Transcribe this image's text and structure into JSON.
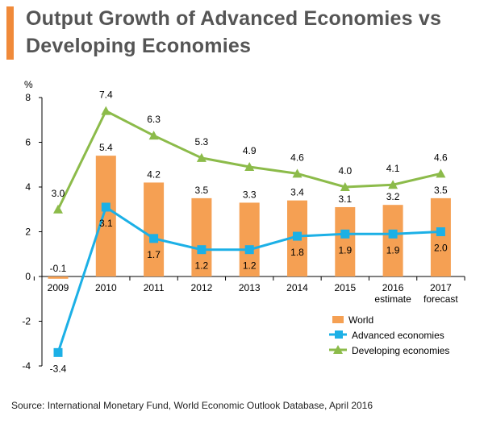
{
  "title_line1": "Output Growth of Advanced Economies vs",
  "title_line2": "Developing Economies",
  "source": "Source: International Monetary Fund, World Economic Outlook Database, April 2016",
  "colors": {
    "world": "#f5a053",
    "advanced": "#1cb0e6",
    "developing": "#8cbb4a",
    "accent": "#f08a3a"
  },
  "chart_data": {
    "type": "bar",
    "title": "Output Growth of Advanced Economies vs Developing Economies",
    "ylabel": "%",
    "ylim": [
      -4,
      8
    ],
    "yticks": [
      -4,
      -2,
      0,
      2,
      4,
      6,
      8
    ],
    "categories": [
      "2009",
      "2010",
      "2011",
      "2012",
      "2013",
      "2014",
      "2015",
      "2016",
      "2017"
    ],
    "category_sublabels": [
      "",
      "",
      "",
      "",
      "",
      "",
      "",
      "estimate",
      "forecast"
    ],
    "series": [
      {
        "name": "World",
        "kind": "bar",
        "values": [
          -0.1,
          5.4,
          4.2,
          3.5,
          3.3,
          3.4,
          3.1,
          3.2,
          3.5
        ]
      },
      {
        "name": "Advanced economies",
        "kind": "line",
        "marker": "square",
        "values": [
          -3.4,
          3.1,
          1.7,
          1.2,
          1.2,
          1.8,
          1.9,
          1.9,
          2.0
        ]
      },
      {
        "name": "Developing economies",
        "kind": "line",
        "marker": "triangle",
        "values": [
          3.0,
          7.4,
          6.3,
          5.3,
          4.9,
          4.6,
          4.0,
          4.1,
          4.6
        ]
      }
    ],
    "legend": [
      "World",
      "Advanced economies",
      "Developing economies"
    ],
    "legend_position": "bottom-right"
  }
}
